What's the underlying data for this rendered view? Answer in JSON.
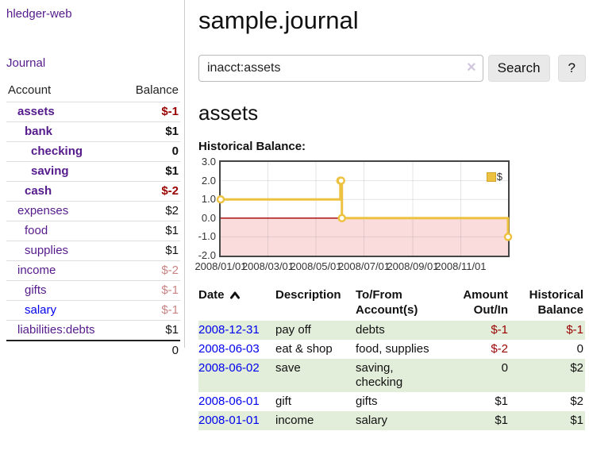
{
  "app": {
    "title": "hledger-web"
  },
  "sidebar": {
    "journal_link": "Journal",
    "table": {
      "headers": {
        "account": "Account",
        "balance": "Balance"
      },
      "rows": [
        {
          "name": "assets",
          "balance": "$-1",
          "indent": 1,
          "bold": true,
          "balance_color": "negative"
        },
        {
          "name": "bank",
          "balance": "$1",
          "indent": 2,
          "bold": true,
          "balance_color": "normal"
        },
        {
          "name": "checking",
          "balance": "0",
          "indent": 3,
          "bold": true,
          "balance_color": "normal"
        },
        {
          "name": "saving",
          "balance": "$1",
          "indent": 3,
          "bold": true,
          "balance_color": "normal"
        },
        {
          "name": "cash",
          "balance": "$-2",
          "indent": 2,
          "bold": true,
          "balance_color": "negative"
        },
        {
          "name": "expenses",
          "balance": "$2",
          "indent": 1,
          "bold": false,
          "balance_color": "normal"
        },
        {
          "name": "food",
          "balance": "$1",
          "indent": 2,
          "bold": false,
          "balance_color": "normal"
        },
        {
          "name": "supplies",
          "balance": "$1",
          "indent": 2,
          "bold": false,
          "balance_color": "normal"
        },
        {
          "name": "income",
          "balance": "$-2",
          "indent": 1,
          "bold": false,
          "balance_color": "negative-faded"
        },
        {
          "name": "gifts",
          "balance": "$-1",
          "indent": 2,
          "bold": false,
          "balance_color": "negative-faded"
        },
        {
          "name": "salary",
          "balance": "$-1",
          "indent": 2,
          "bold": false,
          "balance_color": "negative-faded",
          "link_color": "blue"
        },
        {
          "name": "liabilities:debts",
          "balance": "$1",
          "indent": 1,
          "bold": false,
          "balance_color": "normal"
        }
      ],
      "total": "0"
    }
  },
  "main": {
    "title": "sample.journal",
    "search": {
      "value": "inacct:assets",
      "clear_icon": "×",
      "button": "Search",
      "help_button": "?"
    },
    "account_heading": "assets",
    "chart_label": "Historical Balance:"
  },
  "chart_data": {
    "type": "line",
    "steps": true,
    "title": "Historical Balance:",
    "x_range": [
      "2008-01-01",
      "2008-12-31"
    ],
    "ylim": [
      -2,
      3
    ],
    "x_ticks": [
      "2008/01/01",
      "2008/03/01",
      "2008/05/01",
      "2008/07/01",
      "2008/09/01",
      "2008/11/01"
    ],
    "y_ticks": [
      3.0,
      2.0,
      1.0,
      0.0,
      -1.0,
      -2.0
    ],
    "y_tick_labels": [
      "3.0",
      "2.0",
      "1.0",
      "0.0",
      "-1.0",
      "-2.0"
    ],
    "grid": true,
    "legend_position": "top-right",
    "series": [
      {
        "name": "$",
        "color": "#edc240",
        "points": [
          [
            "2008-01-01",
            1
          ],
          [
            "2008-06-01",
            2
          ],
          [
            "2008-06-02",
            2
          ],
          [
            "2008-06-03",
            0
          ],
          [
            "2008-12-31",
            -1
          ]
        ]
      }
    ],
    "negative_region_color": "#fbdcdc",
    "zero_line_color": "#aa1111"
  },
  "register": {
    "headers": {
      "date": "Date",
      "sort_icon": "chevron-up",
      "description": "Description",
      "account_line1": "To/From",
      "account_line2": "Account(s)",
      "amount_line1": "Amount",
      "amount_line2": "Out/In",
      "balance_line1": "Historical",
      "balance_line2": "Balance"
    },
    "rows": [
      {
        "date": "2008-12-31",
        "description": "pay off",
        "accounts": "debts",
        "amount": "$-1",
        "balance": "$-1",
        "amount_negative": true,
        "balance_negative": true,
        "highlight": true
      },
      {
        "date": "2008-06-03",
        "description": "eat & shop",
        "accounts": "food, supplies",
        "amount": "$-2",
        "balance": "0",
        "amount_negative": true,
        "balance_negative": false,
        "highlight": false
      },
      {
        "date": "2008-06-02",
        "description": "save",
        "accounts": "saving, checking",
        "amount": "0",
        "balance": "$2",
        "amount_negative": false,
        "balance_negative": false,
        "highlight": true
      },
      {
        "date": "2008-06-01",
        "description": "gift",
        "accounts": "gifts",
        "amount": "$1",
        "balance": "$2",
        "amount_negative": false,
        "balance_negative": false,
        "highlight": false
      },
      {
        "date": "2008-01-01",
        "description": "income",
        "accounts": "salary",
        "amount": "$1",
        "balance": "$1",
        "amount_negative": false,
        "balance_negative": false,
        "highlight": true
      }
    ]
  },
  "colors": {
    "link_visited_purple": "#551a8b",
    "link_unvisited_blue": "#0000ee",
    "negative_red": "#990000",
    "negative_faded_red": "#c98383",
    "row_highlight_green": "#e2edda",
    "chart_line_yellow": "#edc240",
    "chart_negative_region_pink": "#fbdcdc",
    "chart_zero_line_red": "#aa1111",
    "button_gray": "#e9e9e9"
  }
}
